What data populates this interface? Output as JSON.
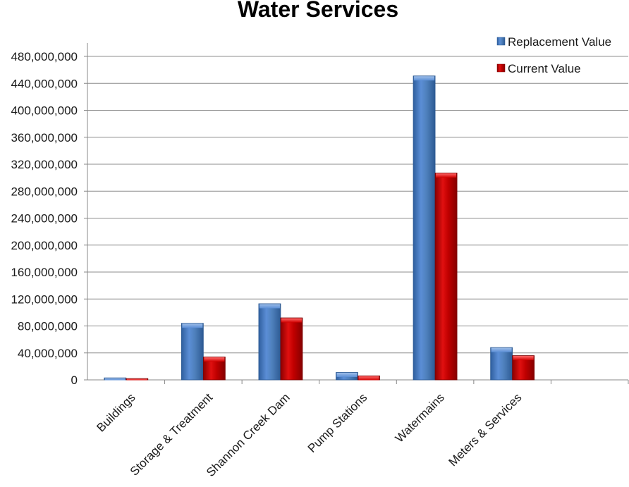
{
  "chart_data": {
    "type": "bar",
    "title": "Water Services",
    "xlabel": "",
    "ylabel": "",
    "ylim": [
      0,
      480000000
    ],
    "ytick_step": 40000000,
    "yticks": [
      "0",
      "40,000,000",
      "80,000,000",
      "120,000,000",
      "160,000,000",
      "200,000,000",
      "240,000,000",
      "280,000,000",
      "320,000,000",
      "360,000,000",
      "400,000,000",
      "440,000,000",
      "480,000,000"
    ],
    "categories": [
      "Buildings",
      "Storage & Treatment",
      "Shannon Creek Dam",
      "Pump Stations",
      "Watermains",
      "Meters & Services",
      ""
    ],
    "series": [
      {
        "name": "Replacement Value",
        "color": "#4f81bd",
        "values": [
          3000000,
          84000000,
          113000000,
          11000000,
          451000000,
          48000000,
          0
        ]
      },
      {
        "name": "Current Value",
        "color": "#c00000",
        "values": [
          2000000,
          34000000,
          92000000,
          6000000,
          307000000,
          36000000,
          0
        ]
      }
    ],
    "grid": true,
    "legend_position": "top-right"
  }
}
